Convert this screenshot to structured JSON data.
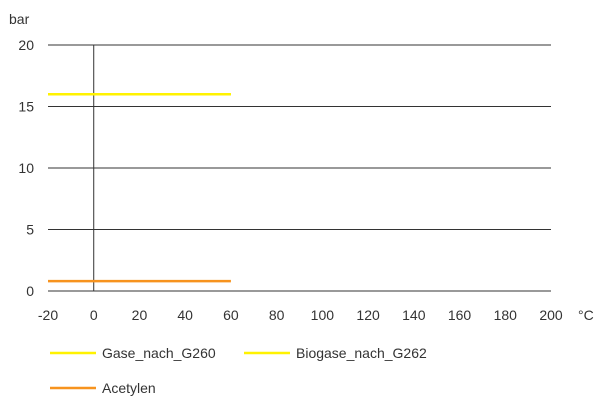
{
  "chart_data": {
    "type": "line",
    "y_unit": "bar",
    "x_unit": "°C",
    "xlim": [
      -20,
      200
    ],
    "ylim": [
      0,
      20
    ],
    "x_ticks": [
      -20,
      0,
      20,
      40,
      60,
      80,
      100,
      120,
      140,
      160,
      180,
      200
    ],
    "y_ticks": [
      0,
      5,
      10,
      15,
      20
    ],
    "grid": "horizontal",
    "legend_position": "bottom",
    "series": [
      {
        "name": "Gase_nach_G260",
        "color": "#fff200",
        "x": [
          -20,
          60
        ],
        "y": [
          16,
          16
        ]
      },
      {
        "name": "Biogase_nach_G262",
        "color": "#fff200",
        "x": [
          -20,
          60
        ],
        "y": [
          16,
          16
        ]
      },
      {
        "name": "Acetylen",
        "color": "#f7931e",
        "x": [
          -20,
          60
        ],
        "y": [
          0.8,
          0.8
        ]
      }
    ]
  }
}
